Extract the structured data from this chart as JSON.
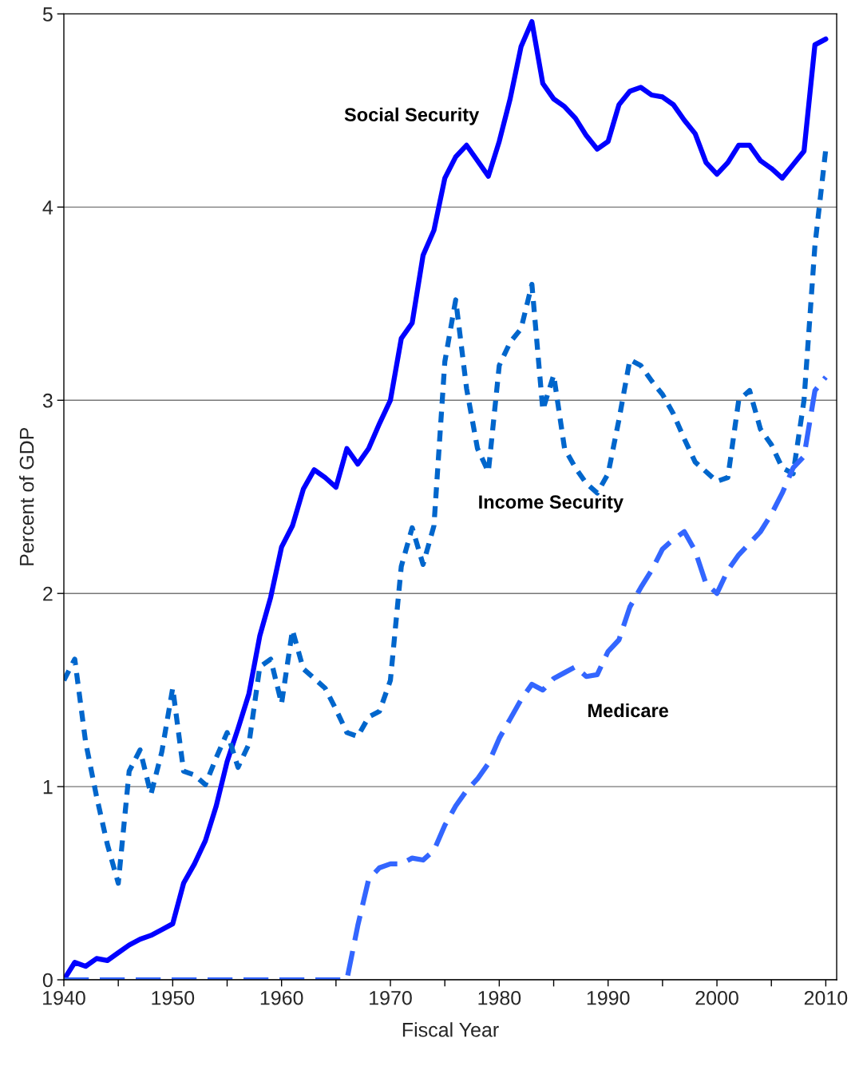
{
  "chart_data": {
    "type": "line",
    "xlabel": "Fiscal Year",
    "ylabel": "Percent of GDP",
    "x": [
      1940,
      1941,
      1942,
      1943,
      1944,
      1945,
      1946,
      1947,
      1948,
      1949,
      1950,
      1951,
      1952,
      1953,
      1954,
      1955,
      1956,
      1957,
      1958,
      1959,
      1960,
      1961,
      1962,
      1963,
      1964,
      1965,
      1966,
      1967,
      1968,
      1969,
      1970,
      1971,
      1972,
      1973,
      1974,
      1975,
      1976,
      1977,
      1978,
      1979,
      1980,
      1981,
      1982,
      1983,
      1984,
      1985,
      1986,
      1987,
      1988,
      1989,
      1990,
      1991,
      1992,
      1993,
      1994,
      1995,
      1996,
      1997,
      1998,
      1999,
      2000,
      2001,
      2002,
      2003,
      2004,
      2005,
      2006,
      2007,
      2008,
      2009,
      2010
    ],
    "series": [
      {
        "name": "Social Security",
        "color": "#0000ff",
        "line_style": "solid",
        "values": [
          0.0,
          0.09,
          0.07,
          0.11,
          0.1,
          0.14,
          0.18,
          0.21,
          0.23,
          0.26,
          0.29,
          0.5,
          0.6,
          0.72,
          0.9,
          1.13,
          1.3,
          1.48,
          1.78,
          1.98,
          2.24,
          2.35,
          2.54,
          2.64,
          2.6,
          2.55,
          2.75,
          2.67,
          2.75,
          2.88,
          3.0,
          3.32,
          3.4,
          3.75,
          3.88,
          4.15,
          4.26,
          4.32,
          4.24,
          4.16,
          4.34,
          4.56,
          4.83,
          4.96,
          4.64,
          4.56,
          4.52,
          4.46,
          4.37,
          4.3,
          4.34,
          4.53,
          4.6,
          4.62,
          4.58,
          4.57,
          4.53,
          4.45,
          4.38,
          4.23,
          4.17,
          4.23,
          4.32,
          4.32,
          4.24,
          4.2,
          4.15,
          4.22,
          4.29,
          4.84,
          4.87
        ]
      },
      {
        "name": "Income Security",
        "color": "#0066cc",
        "line_style": "dashed",
        "values": [
          1.55,
          1.66,
          1.23,
          0.95,
          0.7,
          0.5,
          1.08,
          1.19,
          0.96,
          1.18,
          1.51,
          1.08,
          1.06,
          1.01,
          1.15,
          1.28,
          1.1,
          1.22,
          1.62,
          1.66,
          1.43,
          1.81,
          1.61,
          1.56,
          1.51,
          1.4,
          1.28,
          1.26,
          1.36,
          1.39,
          1.55,
          2.14,
          2.34,
          2.15,
          2.35,
          3.2,
          3.52,
          3.06,
          2.75,
          2.63,
          3.18,
          3.3,
          3.37,
          3.6,
          2.95,
          3.13,
          2.75,
          2.65,
          2.57,
          2.52,
          2.62,
          2.9,
          3.21,
          3.18,
          3.1,
          3.03,
          2.93,
          2.8,
          2.68,
          2.63,
          2.58,
          2.6,
          3.0,
          3.05,
          2.85,
          2.77,
          2.65,
          2.62,
          3.0,
          3.8,
          4.3
        ]
      },
      {
        "name": "Medicare",
        "color": "#3366ff",
        "line_style": "dashed",
        "values": [
          0,
          0,
          0,
          0,
          0,
          0,
          0,
          0,
          0,
          0,
          0,
          0,
          0,
          0,
          0,
          0,
          0,
          0,
          0,
          0,
          0,
          0,
          0,
          0,
          0,
          0,
          0,
          0.28,
          0.52,
          0.58,
          0.6,
          0.6,
          0.63,
          0.62,
          0.67,
          0.8,
          0.9,
          0.98,
          1.04,
          1.12,
          1.25,
          1.35,
          1.45,
          1.53,
          1.5,
          1.56,
          1.59,
          1.62,
          1.57,
          1.58,
          1.7,
          1.76,
          1.93,
          2.03,
          2.12,
          2.23,
          2.28,
          2.32,
          2.22,
          2.05,
          2.0,
          2.12,
          2.2,
          2.26,
          2.32,
          2.41,
          2.52,
          2.65,
          2.71,
          3.05,
          3.12
        ]
      }
    ],
    "xlim": [
      1940,
      2011
    ],
    "xticks": [
      1940,
      {
        "value": 1945,
        "label": null
      },
      1950,
      {
        "value": 1955,
        "label": null
      },
      1960,
      {
        "value": 1965,
        "label": null
      },
      1970,
      {
        "value": 1975,
        "label": null
      },
      1980,
      {
        "value": 1985,
        "label": null
      },
      1990,
      {
        "value": 1995,
        "label": null
      },
      2000,
      {
        "value": 2005,
        "label": null
      },
      2010
    ],
    "ylim": [
      0,
      5
    ],
    "yticks": [
      0,
      1,
      2,
      3,
      4,
      5
    ],
    "grid": "y",
    "legend": false,
    "marker": "none"
  }
}
